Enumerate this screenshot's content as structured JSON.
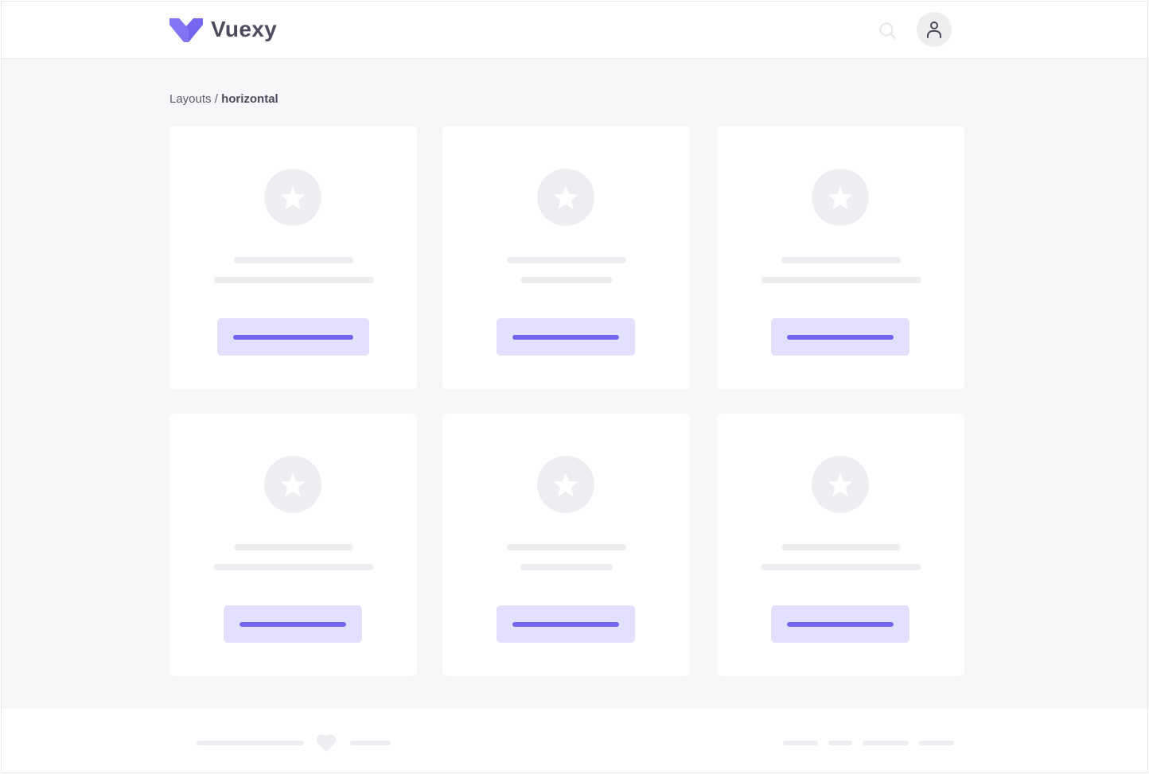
{
  "header": {
    "brand": "Vuexy",
    "logo_color": "#7367f0",
    "search_icon": "search-icon",
    "avatar_icon": "user-icon"
  },
  "breadcrumb": {
    "parent": "Layouts",
    "separator": " / ",
    "current": "horizontal"
  },
  "cards": [
    {
      "icon": "star-icon"
    },
    {
      "icon": "star-icon"
    },
    {
      "icon": "star-icon"
    },
    {
      "icon": "star-icon"
    },
    {
      "icon": "star-icon"
    },
    {
      "icon": "star-icon"
    }
  ],
  "footer": {
    "icon": "heart-icon"
  },
  "colors": {
    "accent": "#7367f0",
    "accent_light": "#e3e0fd",
    "skeleton": "#edeef1",
    "background": "#f7f7f9"
  }
}
